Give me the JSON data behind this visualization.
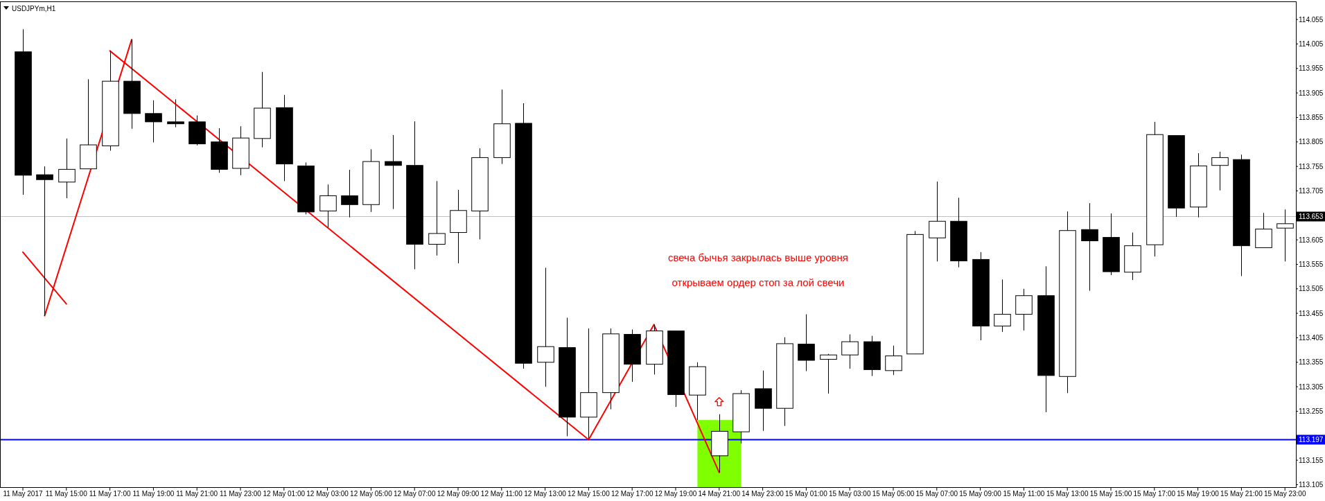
{
  "chart_data": {
    "type": "candlestick",
    "title": "USDJPYm,H1",
    "categories": [
      "11 May 2017",
      null,
      "11 May 15:00",
      null,
      "11 May 17:00",
      null,
      "11 May 19:00",
      null,
      "11 May 21:00",
      null,
      "11 May 23:00",
      null,
      "12 May 01:00",
      null,
      "12 May 03:00",
      null,
      "12 May 05:00",
      null,
      "12 May 07:00",
      null,
      "12 May 09:00",
      null,
      "12 May 11:00",
      null,
      "12 May 13:00",
      null,
      "12 May 15:00",
      null,
      "12 May 17:00",
      null,
      "12 May 19:00",
      null,
      "14 May 21:00",
      null,
      "14 May 23:00",
      null,
      "15 May 01:00",
      null,
      "15 May 03:00",
      null,
      "15 May 05:00",
      null,
      "15 May 07:00",
      null,
      "15 May 09:00",
      null,
      "15 May 11:00",
      null,
      "15 May 13:00",
      null,
      "15 May 15:00",
      null,
      "15 May 17:00",
      null,
      "15 May 19:00",
      null,
      "15 May 21:00",
      null,
      "15 May 23:00"
    ],
    "ohlc": [
      [
        113.989,
        114.035,
        113.697,
        113.737
      ],
      [
        113.738,
        113.755,
        113.45,
        113.728
      ],
      [
        113.723,
        113.812,
        113.69,
        113.749
      ],
      [
        113.75,
        113.933,
        113.75,
        113.799
      ],
      [
        113.797,
        113.991,
        113.787,
        113.929
      ],
      [
        113.929,
        114.014,
        113.832,
        113.863
      ],
      [
        113.863,
        113.89,
        113.804,
        113.846
      ],
      [
        113.846,
        113.892,
        113.835,
        113.842
      ],
      [
        113.846,
        113.859,
        113.798,
        113.801
      ],
      [
        113.805,
        113.833,
        113.742,
        113.749
      ],
      [
        113.751,
        113.837,
        113.737,
        113.813
      ],
      [
        113.812,
        113.948,
        113.794,
        113.874
      ],
      [
        113.875,
        113.901,
        113.725,
        113.76
      ],
      [
        113.756,
        113.763,
        113.657,
        113.662
      ],
      [
        113.664,
        113.718,
        113.63,
        113.695
      ],
      [
        113.695,
        113.748,
        113.651,
        113.677
      ],
      [
        113.677,
        113.79,
        113.662,
        113.765
      ],
      [
        113.765,
        113.819,
        113.668,
        113.757
      ],
      [
        113.757,
        113.847,
        113.545,
        113.596
      ],
      [
        113.596,
        113.725,
        113.573,
        113.618
      ],
      [
        113.62,
        113.707,
        113.557,
        113.665
      ],
      [
        113.664,
        113.792,
        113.606,
        113.773
      ],
      [
        113.773,
        113.912,
        113.76,
        113.842
      ],
      [
        113.843,
        113.884,
        113.342,
        113.353
      ],
      [
        113.355,
        113.548,
        113.305,
        113.387
      ],
      [
        113.385,
        113.446,
        113.204,
        113.243
      ],
      [
        113.243,
        113.424,
        113.197,
        113.293
      ],
      [
        113.293,
        113.424,
        113.259,
        113.413
      ],
      [
        113.412,
        113.422,
        113.315,
        113.351
      ],
      [
        113.351,
        113.432,
        113.33,
        113.419
      ],
      [
        113.419,
        113.419,
        113.264,
        113.289
      ],
      [
        113.288,
        113.355,
        113.237,
        113.346
      ],
      [
        113.164,
        113.249,
        113.13,
        113.214
      ],
      [
        113.213,
        113.298,
        113.189,
        113.291
      ],
      [
        113.301,
        113.338,
        113.215,
        113.261
      ],
      [
        113.261,
        113.406,
        113.225,
        113.393
      ],
      [
        113.392,
        113.453,
        113.337,
        113.359
      ],
      [
        113.361,
        113.372,
        113.291,
        113.37
      ],
      [
        113.37,
        113.412,
        113.342,
        113.397
      ],
      [
        113.397,
        113.409,
        113.327,
        113.34
      ],
      [
        113.338,
        113.389,
        113.329,
        113.368
      ],
      [
        113.372,
        113.623,
        113.372,
        113.616
      ],
      [
        113.609,
        113.724,
        113.561,
        113.643
      ],
      [
        113.643,
        113.691,
        113.549,
        113.562
      ],
      [
        113.565,
        113.58,
        113.4,
        113.429
      ],
      [
        113.429,
        113.524,
        113.417,
        113.453
      ],
      [
        113.453,
        113.505,
        113.42,
        113.491
      ],
      [
        113.491,
        113.551,
        113.253,
        113.328
      ],
      [
        113.326,
        113.663,
        113.292,
        113.624
      ],
      [
        113.626,
        113.68,
        113.501,
        113.603
      ],
      [
        113.61,
        113.659,
        113.533,
        113.54
      ],
      [
        113.539,
        113.62,
        113.523,
        113.593
      ],
      [
        113.595,
        113.846,
        113.571,
        113.82
      ],
      [
        113.818,
        113.818,
        113.652,
        113.67
      ],
      [
        113.672,
        113.782,
        113.651,
        113.756
      ],
      [
        113.757,
        113.785,
        113.706,
        113.773
      ],
      [
        113.769,
        113.779,
        113.531,
        113.593
      ],
      [
        113.589,
        113.66,
        113.589,
        113.627
      ],
      [
        113.629,
        113.667,
        113.561,
        113.638
      ]
    ],
    "series": [
      {
        "type": "line",
        "color": "#ff0000",
        "values": [
          113.58,
          null,
          113.474,
          null,
          null,
          null,
          null,
          null,
          null,
          null,
          null,
          null,
          null,
          null,
          null,
          null,
          null,
          null,
          null,
          null,
          null,
          null,
          null,
          null,
          null,
          null,
          null,
          null,
          null,
          null,
          null,
          null,
          null,
          null,
          null,
          null,
          null,
          null,
          null,
          null,
          null,
          null,
          null,
          null,
          null,
          null,
          null,
          null,
          null,
          null,
          null,
          null,
          null,
          null,
          null,
          null,
          null,
          null,
          null
        ]
      },
      {
        "type": "line",
        "color": "#ff0000",
        "values": [
          null,
          113.45,
          null,
          null,
          null,
          114.014,
          null,
          null,
          null,
          null,
          null,
          null,
          null,
          null,
          null,
          null,
          null,
          null,
          null,
          null,
          null,
          null,
          null,
          null,
          null,
          null,
          null,
          null,
          null,
          null,
          null,
          null,
          null,
          null,
          null,
          null,
          null,
          null,
          null,
          null,
          null,
          null,
          null,
          null,
          null,
          null,
          null,
          null,
          null,
          null,
          null,
          null,
          null,
          null,
          null,
          null,
          null,
          null,
          null
        ]
      },
      {
        "type": "line",
        "color": "#ff0000",
        "values": [
          null,
          null,
          null,
          null,
          113.991,
          null,
          null,
          null,
          null,
          null,
          null,
          null,
          null,
          null,
          null,
          null,
          null,
          null,
          null,
          null,
          null,
          null,
          null,
          null,
          null,
          null,
          113.197,
          null,
          null,
          113.432,
          null,
          null,
          113.13,
          null,
          null,
          null,
          null,
          null,
          null,
          null,
          null,
          null,
          null,
          null,
          null,
          null,
          null,
          null,
          null,
          null,
          null,
          null,
          null,
          null,
          null,
          null,
          null,
          null,
          null
        ]
      }
    ],
    "ylim": [
      113.1,
      114.092
    ],
    "yticks": [
      114.055,
      114.005,
      113.955,
      113.905,
      113.855,
      113.805,
      113.755,
      113.705,
      113.605,
      113.555,
      113.505,
      113.455,
      113.405,
      113.355,
      113.305,
      113.255,
      113.155,
      113.105
    ],
    "ref_lines": [
      {
        "axis": "y",
        "value": 113.653,
        "label": "113.653",
        "color": "#c0c0c0"
      },
      {
        "axis": "y",
        "value": 113.197,
        "label": "113.197",
        "color": "#0000ff"
      }
    ],
    "annotations": [
      "свеча бычья закрылась выше уровня",
      "открываем ордер стоп за лой свечи"
    ]
  }
}
